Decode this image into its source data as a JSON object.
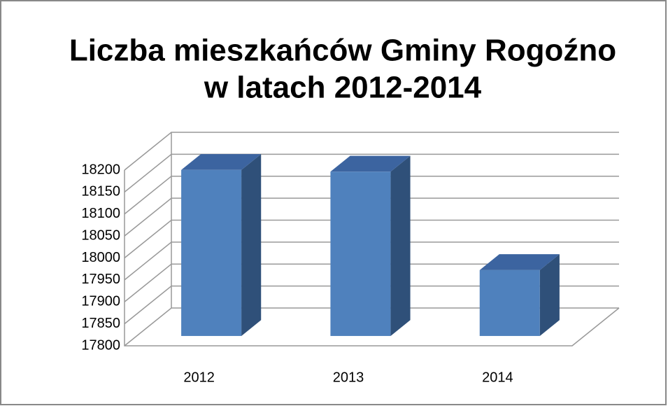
{
  "chart_data": {
    "type": "bar3d",
    "title": [
      "Liczba mieszkańców Gminy Rogoźno",
      "w latach 2012-2014"
    ],
    "categories": [
      "2012",
      "2013",
      "2014"
    ],
    "values": [
      18178,
      18174,
      17950
    ],
    "color": "#4f81bd",
    "ylim": [
      17800,
      18200
    ],
    "yticks": [
      17800,
      17850,
      17900,
      17950,
      18000,
      18050,
      18100,
      18150,
      18200
    ],
    "grid": true
  }
}
